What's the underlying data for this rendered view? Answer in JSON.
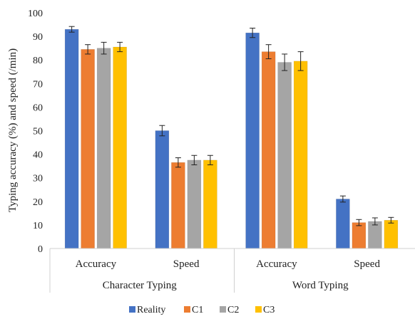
{
  "chart_data": {
    "type": "bar",
    "title": "",
    "ylabel": "Typing accuracy (%) and speed (/min)",
    "xlabel": "",
    "ylim": [
      0,
      100
    ],
    "yticks": [
      0,
      10,
      20,
      30,
      40,
      50,
      60,
      70,
      80,
      90,
      100
    ],
    "grid": false,
    "legend_position": "bottom",
    "groups": [
      {
        "label": "Character Typing",
        "categories": [
          "Accuracy",
          "Speed"
        ]
      },
      {
        "label": "Word Typing",
        "categories": [
          "Accuracy",
          "Speed"
        ]
      }
    ],
    "categories": [
      "Accuracy",
      "Speed",
      "Accuracy",
      "Speed"
    ],
    "series": [
      {
        "name": "Reality",
        "color": "#4472C4",
        "values": [
          93,
          50,
          91.5,
          21
        ],
        "errors": [
          1.2,
          2.2,
          2.0,
          1.3
        ]
      },
      {
        "name": "C1",
        "color": "#ED7D31",
        "values": [
          84.5,
          36.5,
          83.5,
          11
        ],
        "errors": [
          2.0,
          2.0,
          3.0,
          1.3
        ]
      },
      {
        "name": "C2",
        "color": "#A5A5A5",
        "values": [
          85,
          37.5,
          79,
          11.5
        ],
        "errors": [
          2.5,
          2.0,
          3.5,
          1.5
        ]
      },
      {
        "name": "C3",
        "color": "#FFC000",
        "values": [
          85.5,
          37.5,
          79.5,
          12
        ],
        "errors": [
          2.0,
          2.0,
          4.0,
          1.2
        ]
      }
    ]
  }
}
